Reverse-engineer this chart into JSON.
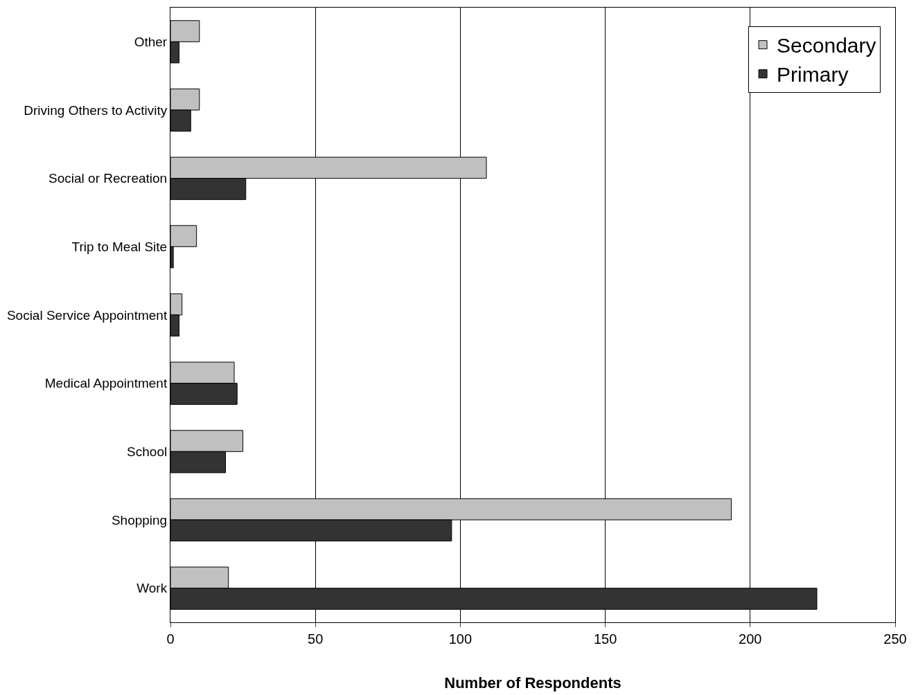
{
  "chart_data": {
    "type": "bar",
    "orientation": "horizontal",
    "xlabel": "Number of Respondents",
    "categories": [
      "Other",
      "Driving Others to Activity",
      "Social or Recreation",
      "Trip to Meal Site",
      "Social Service Appointment",
      "Medical Appointment",
      "School",
      "Shopping",
      "Work"
    ],
    "series": [
      {
        "name": "Secondary",
        "color": "#c0c0c0",
        "values": [
          10,
          10,
          109,
          9,
          4,
          22,
          25,
          193.5,
          20
        ]
      },
      {
        "name": "Primary",
        "color": "#333333",
        "values": [
          3,
          7,
          26,
          1,
          3,
          23,
          19,
          97,
          223
        ]
      }
    ],
    "xlim": [
      0,
      250
    ],
    "xticks": [
      0,
      50,
      100,
      150,
      200,
      250
    ],
    "grid": "x",
    "legend": "top right"
  }
}
